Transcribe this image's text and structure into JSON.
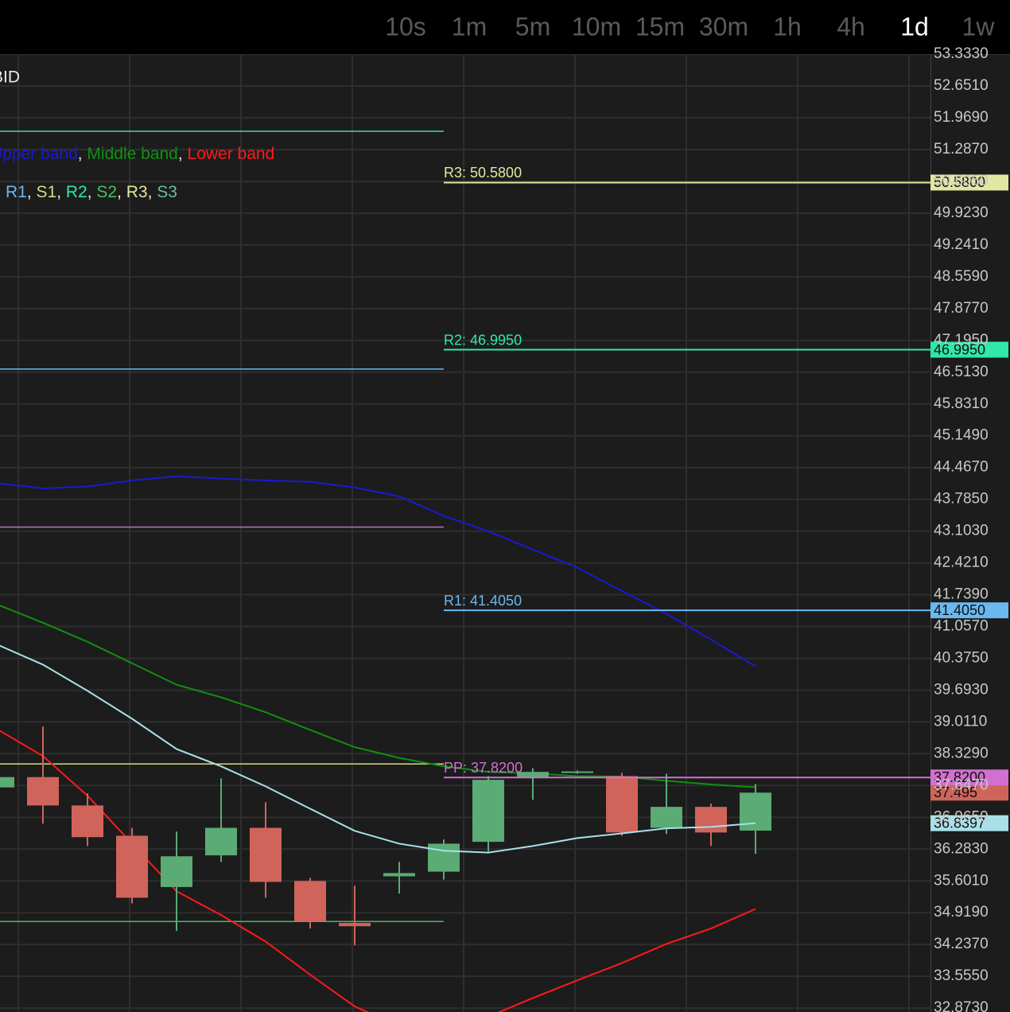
{
  "toolbar": {
    "timeframes": [
      "10s",
      "1m",
      "5m",
      "10m",
      "15m",
      "30m",
      "1h",
      "4h",
      "1d",
      "1w"
    ],
    "selected": "1d"
  },
  "chart_data": {
    "type": "candlestick",
    "title": "BID",
    "legend_separator": ", ",
    "bollinger_legend": [
      {
        "name": "Upper band",
        "color": "#1a1ad0"
      },
      {
        "name": "Middle band",
        "color": "#109010"
      },
      {
        "name": "Lower band",
        "color": "#ff1a1a"
      }
    ],
    "pivot_legend": [
      {
        "name": "PP",
        "color": "#d070d0"
      },
      {
        "name": "R1",
        "color": "#6ab8f0"
      },
      {
        "name": "S1",
        "color": "#d8d880"
      },
      {
        "name": "R2",
        "color": "#30e8a8"
      },
      {
        "name": "S2",
        "color": "#40c060"
      },
      {
        "name": "R3",
        "color": "#e0e8a0"
      },
      {
        "name": "S3",
        "color": "#60c0a0"
      }
    ],
    "ylim": [
      32.79,
      53.335
    ],
    "yticks": [
      {
        "value": 53.333,
        "label": "53.3330"
      },
      {
        "value": 52.651,
        "label": "52.6510"
      },
      {
        "value": 51.969,
        "label": "51.9690"
      },
      {
        "value": 51.287,
        "label": "51.2870"
      },
      {
        "value": 50.605,
        "label": "50.6050"
      },
      {
        "value": 49.923,
        "label": "49.9230"
      },
      {
        "value": 49.241,
        "label": "49.2410"
      },
      {
        "value": 48.559,
        "label": "48.5590"
      },
      {
        "value": 47.877,
        "label": "47.8770"
      },
      {
        "value": 47.195,
        "label": "47.1950"
      },
      {
        "value": 46.513,
        "label": "46.5130"
      },
      {
        "value": 45.831,
        "label": "45.8310"
      },
      {
        "value": 45.149,
        "label": "45.1490"
      },
      {
        "value": 44.467,
        "label": "44.4670"
      },
      {
        "value": 43.785,
        "label": "43.7850"
      },
      {
        "value": 43.103,
        "label": "43.1030"
      },
      {
        "value": 42.421,
        "label": "42.4210"
      },
      {
        "value": 41.739,
        "label": "41.7390"
      },
      {
        "value": 41.057,
        "label": "41.0570"
      },
      {
        "value": 40.375,
        "label": "40.3750"
      },
      {
        "value": 39.693,
        "label": "39.6930"
      },
      {
        "value": 39.011,
        "label": "39.0110"
      },
      {
        "value": 38.329,
        "label": "38.3290"
      },
      {
        "value": 37.647,
        "label": "37.6470"
      },
      {
        "value": 36.965,
        "label": "36.9650"
      },
      {
        "value": 36.283,
        "label": "36.2830"
      },
      {
        "value": 35.601,
        "label": "35.6010"
      },
      {
        "value": 34.919,
        "label": "34.9190"
      },
      {
        "value": 34.237,
        "label": "34.2370"
      },
      {
        "value": 33.555,
        "label": "33.5550"
      },
      {
        "value": 32.873,
        "label": "32.8730"
      }
    ],
    "grid": true,
    "up_color": "#5aab74",
    "down_color": "#d0645a",
    "open": [
      37.607,
      37.828,
      37.22,
      36.57,
      35.47,
      36.15,
      36.74,
      35.6,
      34.7,
      35.7,
      35.8,
      36.44,
      37.82,
      37.92,
      37.85,
      36.74,
      37.19,
      36.68
    ],
    "high": [
      37.913,
      38.91,
      37.48,
      36.74,
      36.66,
      37.8,
      37.29,
      35.67,
      35.5,
      36.01,
      36.49,
      37.85,
      38.02,
      37.97,
      37.92,
      37.9,
      37.26,
      37.68
    ],
    "low": [
      37.573,
      36.83,
      36.35,
      35.12,
      34.53,
      36.01,
      35.24,
      34.58,
      34.22,
      35.33,
      35.63,
      36.23,
      37.34,
      37.9,
      36.57,
      36.61,
      36.35,
      36.18
    ],
    "close": [
      37.828,
      37.22,
      36.54,
      35.24,
      36.13,
      36.74,
      35.58,
      34.73,
      34.63,
      35.77,
      36.4,
      37.77,
      37.94,
      37.95,
      36.64,
      37.19,
      36.64,
      37.495
    ],
    "last_label": "37.495",
    "lines": [
      {
        "name": "Upper band",
        "color": "#1a1ad0",
        "values": [
          44.13,
          44.02,
          44.06,
          44.19,
          44.28,
          44.23,
          44.19,
          44.16,
          44.04,
          43.85,
          43.43,
          43.1,
          42.71,
          42.32,
          41.82,
          41.33,
          40.78,
          40.2
        ]
      },
      {
        "name": "Middle band",
        "color": "#109010",
        "values": [
          41.52,
          41.14,
          40.73,
          40.27,
          39.81,
          39.54,
          39.22,
          38.84,
          38.47,
          38.24,
          38.06,
          37.94,
          37.91,
          37.85,
          37.84,
          37.75,
          37.67,
          37.61
        ]
      },
      {
        "name": "Lower band",
        "color": "#ff1a1a",
        "values": [
          38.84,
          38.28,
          37.43,
          36.4,
          35.38,
          34.87,
          34.3,
          33.59,
          32.91,
          32.48,
          32.4,
          32.69,
          33.09,
          33.47,
          33.84,
          34.25,
          34.58,
          35.0
        ]
      },
      {
        "color": "#a8e0e8",
        "values": [
          40.66,
          40.24,
          39.68,
          39.08,
          38.43,
          38.06,
          37.63,
          37.15,
          36.675,
          36.4,
          36.25,
          36.21,
          36.35,
          36.52,
          36.62,
          36.73,
          36.76,
          36.8397
        ],
        "last_label": "36.8397"
      }
    ],
    "previous_pivots": [
      {
        "value": 51.68,
        "color": "#40d8b8"
      },
      {
        "value": 46.58,
        "color": "#6ab8f0"
      },
      {
        "value": 43.19,
        "color": "#c070c0"
      },
      {
        "value": 38.11,
        "color": "#d8d880"
      },
      {
        "value": 34.73,
        "color": "#40c060"
      }
    ],
    "pivots": [
      {
        "value": 50.58,
        "label": "R3: 50.5800",
        "value_label": "50.5800",
        "color": "#e0e8a0"
      },
      {
        "value": 46.995,
        "label": "R2: 46.9950",
        "value_label": "46.9950",
        "color": "#30e8a8"
      },
      {
        "value": 41.405,
        "label": "R1: 41.4050",
        "value_label": "41.4050",
        "color": "#6ab8f0"
      },
      {
        "value": 37.82,
        "label": "PP: 37.8200",
        "value_label": "37.8200",
        "color": "#d070d0"
      }
    ]
  }
}
